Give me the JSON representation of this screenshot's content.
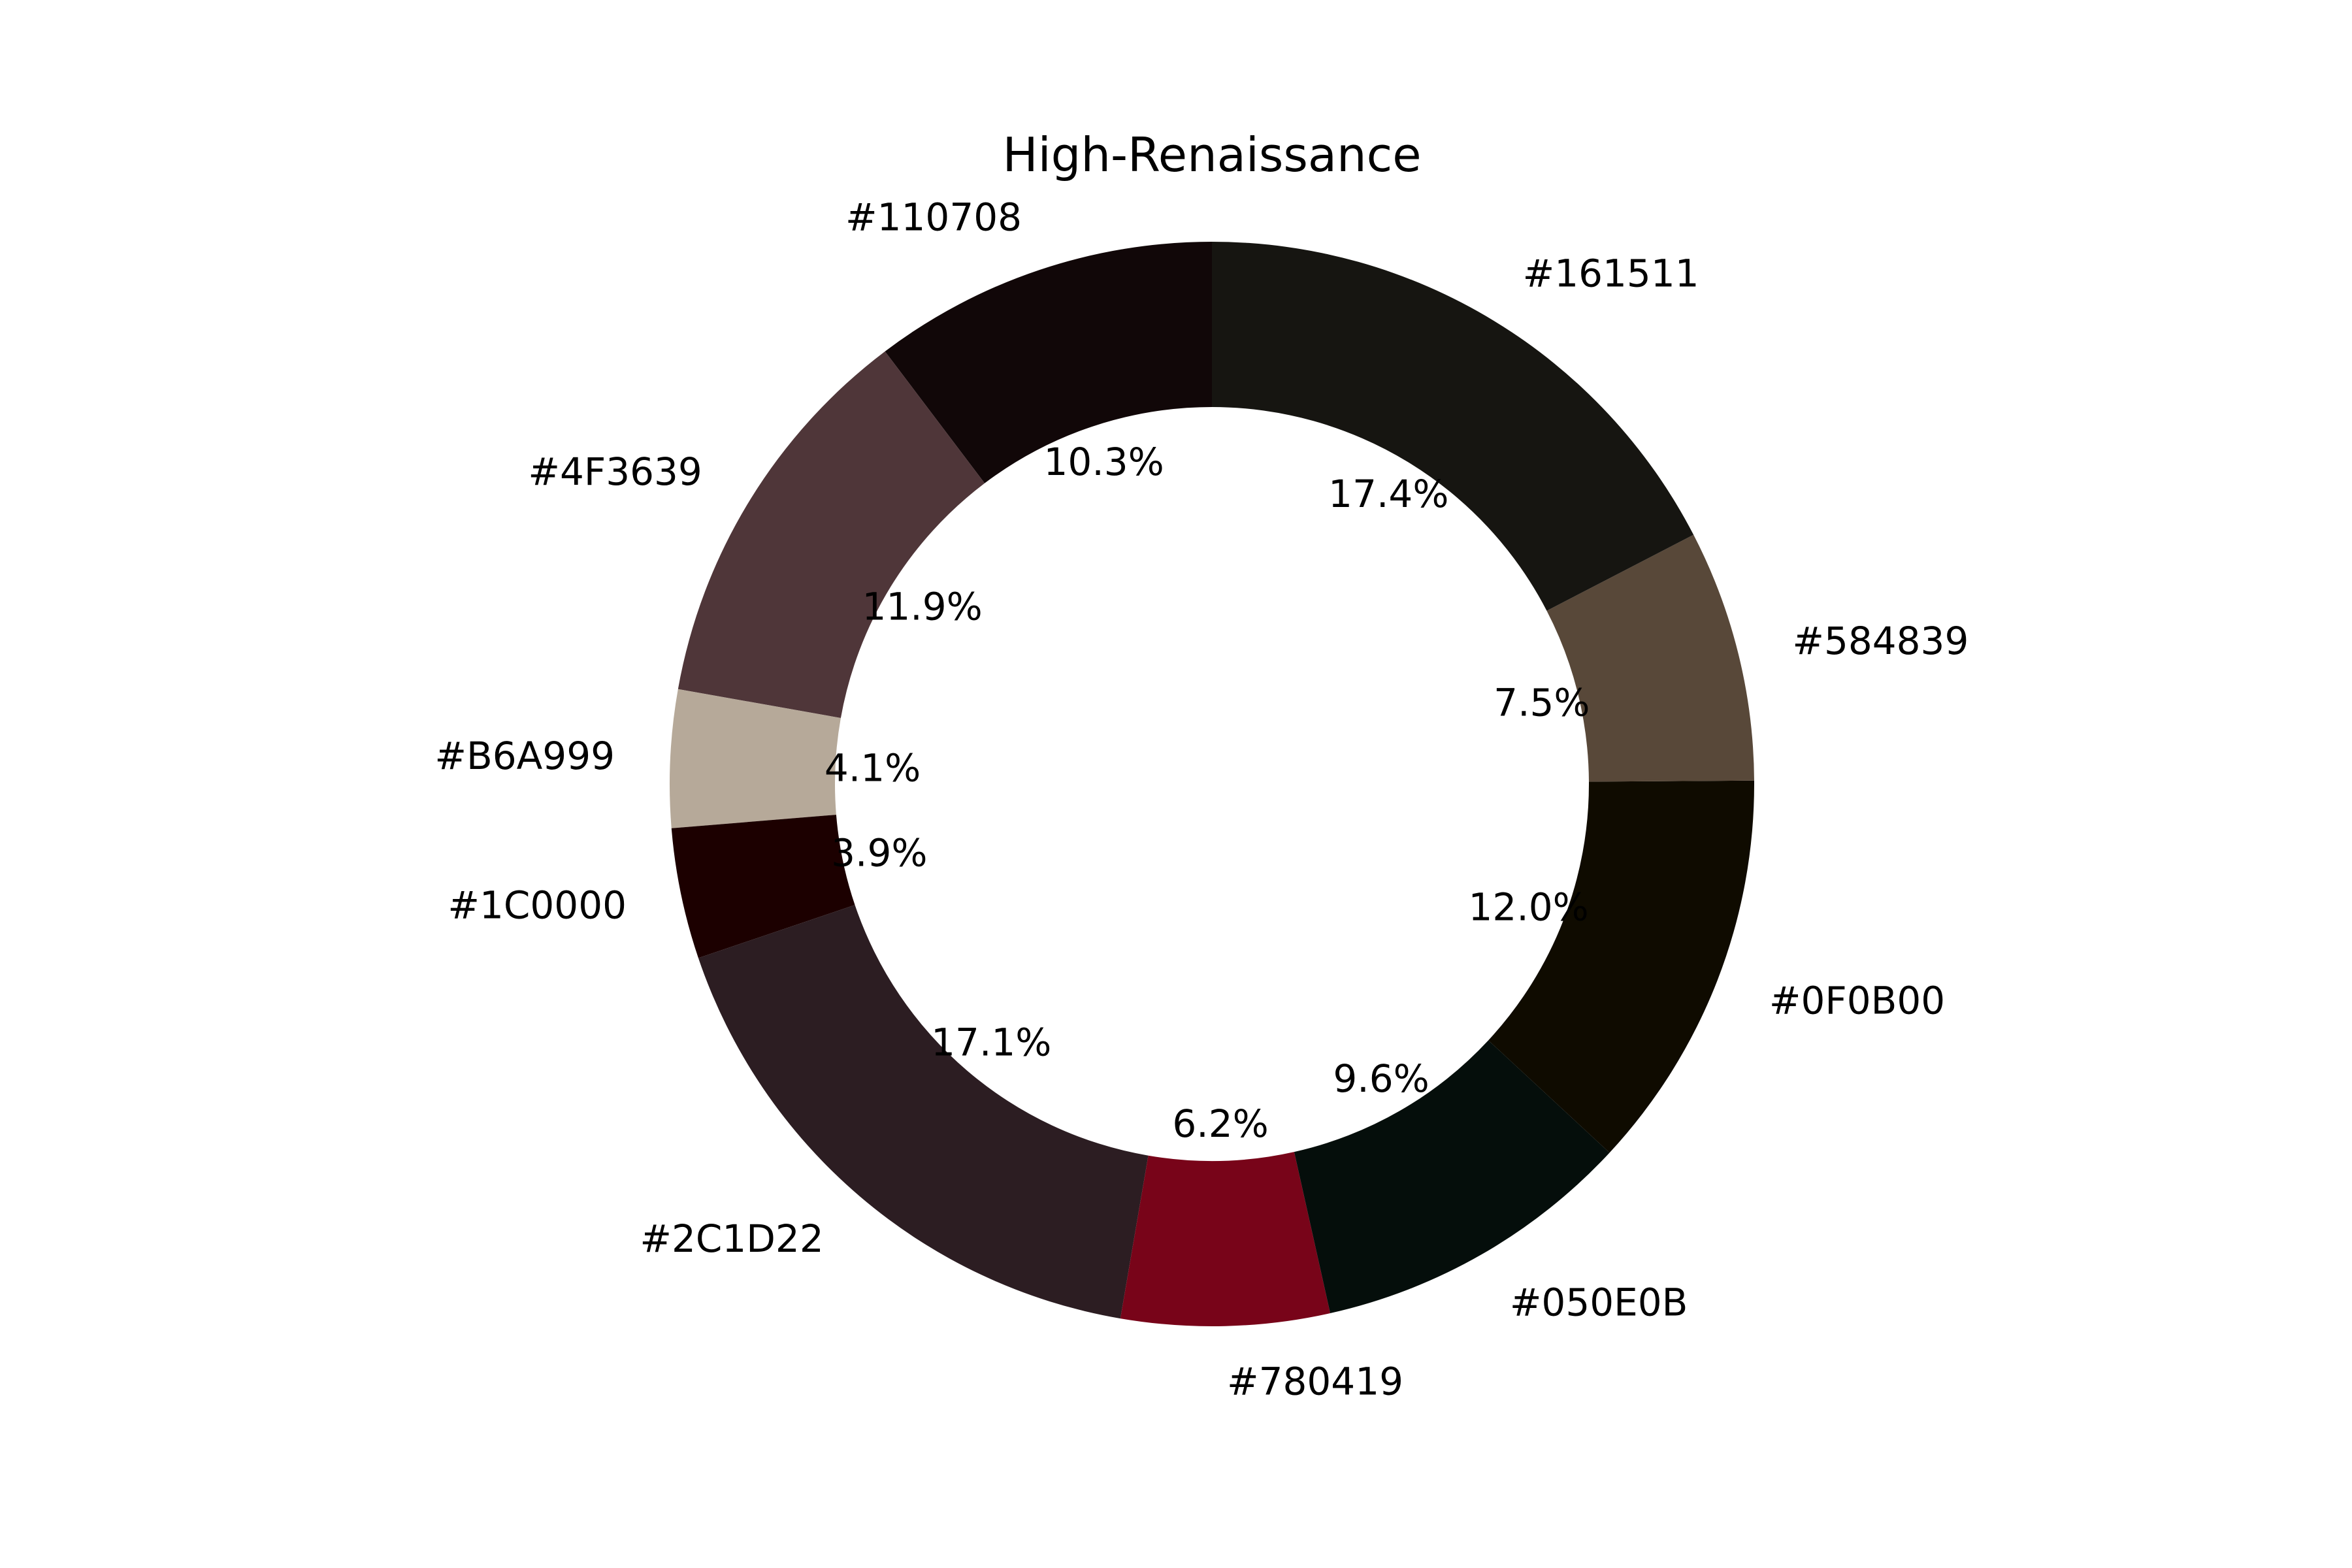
{
  "chart_data": {
    "type": "pie",
    "variant": "donut",
    "title": "High-Renaissance",
    "start_angle_deg": 90,
    "direction": "counterclockwise",
    "labels": [
      "#110708",
      "#4F3639",
      "#B6A999",
      "#1C0000",
      "#2C1D22",
      "#780419",
      "#050E0B",
      "#0F0B00",
      "#584839",
      "#161511"
    ],
    "values": [
      10.3,
      11.9,
      4.1,
      3.9,
      17.1,
      6.2,
      9.6,
      12.0,
      7.5,
      17.4
    ],
    "value_labels": [
      "10.3%",
      "11.9%",
      "4.1%",
      "3.9%",
      "17.1%",
      "6.2%",
      "9.6%",
      "12.0%",
      "7.5%",
      "17.4%"
    ],
    "colors": [
      "#110708",
      "#4F3639",
      "#B6A999",
      "#1C0000",
      "#2C1D22",
      "#780419",
      "#050E0B",
      "#0F0B00",
      "#584839",
      "#161511"
    ],
    "legend": "none"
  }
}
